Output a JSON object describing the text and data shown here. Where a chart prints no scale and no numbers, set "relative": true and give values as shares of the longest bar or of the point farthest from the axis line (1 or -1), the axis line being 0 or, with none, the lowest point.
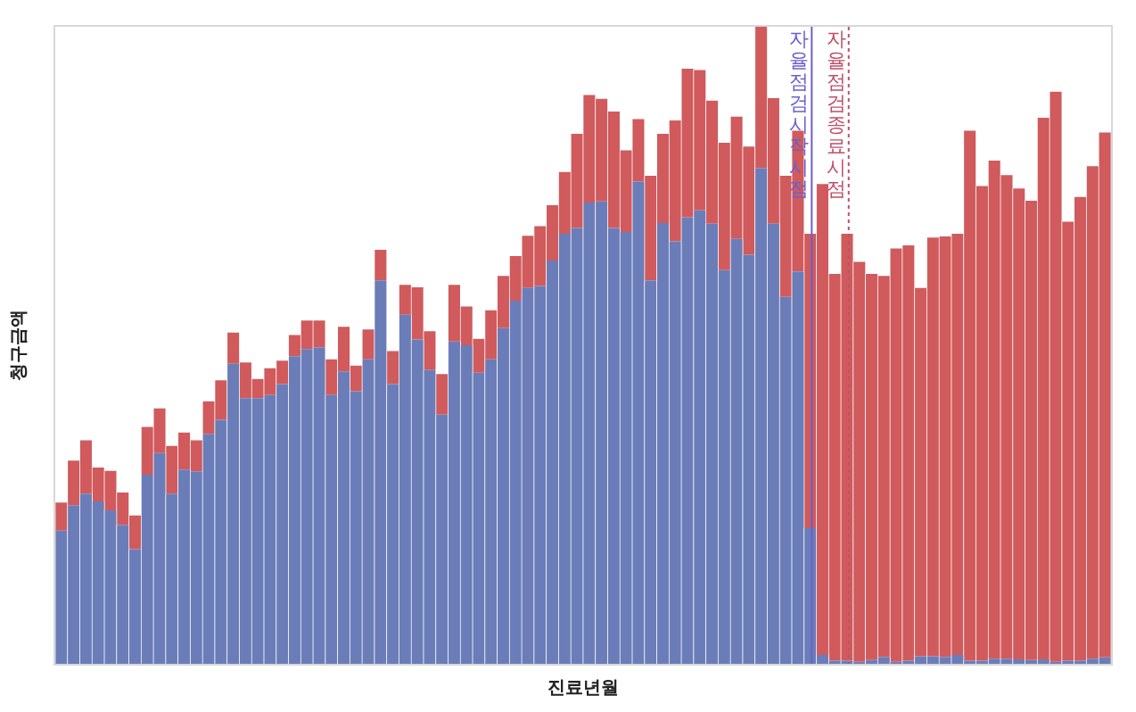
{
  "chart_data": {
    "type": "bar",
    "stacked": true,
    "relative": true,
    "xlabel": "진료년월",
    "ylabel": "청구금액",
    "tick_labels": false,
    "categories": [
      null,
      null,
      null,
      null,
      null,
      null,
      null,
      null,
      null,
      null,
      null,
      null,
      null,
      null,
      null,
      null,
      null,
      null,
      null,
      null,
      null,
      null,
      null,
      null,
      null,
      null,
      null,
      null,
      null,
      null,
      null,
      null,
      null,
      null,
      null,
      null,
      null,
      null,
      null,
      null,
      null,
      null,
      null,
      null,
      null,
      null,
      null,
      null,
      null,
      null,
      null,
      null,
      null,
      null,
      null,
      null,
      null,
      null,
      null,
      null,
      null,
      null,
      null,
      null,
      null,
      null,
      null,
      null,
      null,
      null,
      null,
      null,
      null,
      null,
      null,
      null,
      null,
      null,
      null,
      null,
      null,
      null,
      null,
      null,
      null,
      null
    ],
    "series": [
      {
        "color": "#6b7db8",
        "values": [
          0.209,
          0.249,
          0.267,
          0.255,
          0.241,
          0.218,
          0.18,
          0.297,
          0.331,
          0.267,
          0.305,
          0.302,
          0.361,
          0.383,
          0.471,
          0.417,
          0.417,
          0.422,
          0.439,
          0.483,
          0.494,
          0.497,
          0.422,
          0.459,
          0.428,
          0.478,
          0.602,
          0.439,
          0.548,
          0.509,
          0.461,
          0.391,
          0.506,
          0.5,
          0.457,
          0.478,
          0.527,
          0.57,
          0.59,
          0.593,
          0.633,
          0.675,
          0.684,
          0.724,
          0.726,
          0.684,
          0.678,
          0.757,
          0.602,
          0.692,
          0.663,
          0.701,
          0.712,
          0.691,
          0.618,
          0.667,
          0.642,
          0.778,
          0.691,
          0.576,
          0.616,
          0.213,
          0.014,
          0.005,
          0.005,
          0.003,
          0.006,
          0.011,
          0.003,
          0.005,
          0.012,
          0.012,
          0.011,
          0.014,
          0.005,
          0.005,
          0.008,
          0.008,
          0.007,
          0.006,
          0.007,
          0.003,
          0.005,
          0.005,
          0.008,
          0.01
        ]
      },
      {
        "color": "#d05a5c",
        "values": [
          0.044,
          0.07,
          0.084,
          0.053,
          0.062,
          0.051,
          0.053,
          0.075,
          0.07,
          0.075,
          0.058,
          0.049,
          0.051,
          0.062,
          0.049,
          0.056,
          0.03,
          0.042,
          0.037,
          0.033,
          0.045,
          0.042,
          0.056,
          0.07,
          0.04,
          0.047,
          0.048,
          0.052,
          0.047,
          0.082,
          0.061,
          0.064,
          0.089,
          0.061,
          0.053,
          0.077,
          0.082,
          0.07,
          0.082,
          0.094,
          0.087,
          0.097,
          0.148,
          0.169,
          0.161,
          0.183,
          0.128,
          0.098,
          0.164,
          0.14,
          0.19,
          0.233,
          0.22,
          0.193,
          0.2,
          0.192,
          0.17,
          0.222,
          0.197,
          0.19,
          0.221,
          0.462,
          0.739,
          0.607,
          0.67,
          0.628,
          0.606,
          0.598,
          0.649,
          0.652,
          0.578,
          0.657,
          0.66,
          0.661,
          0.832,
          0.745,
          0.782,
          0.759,
          0.739,
          0.721,
          0.85,
          0.895,
          0.689,
          0.728,
          0.773,
          0.824
        ]
      }
    ],
    "annotations": [
      "자율점검시작시점",
      "자율점검종료시점"
    ]
  }
}
